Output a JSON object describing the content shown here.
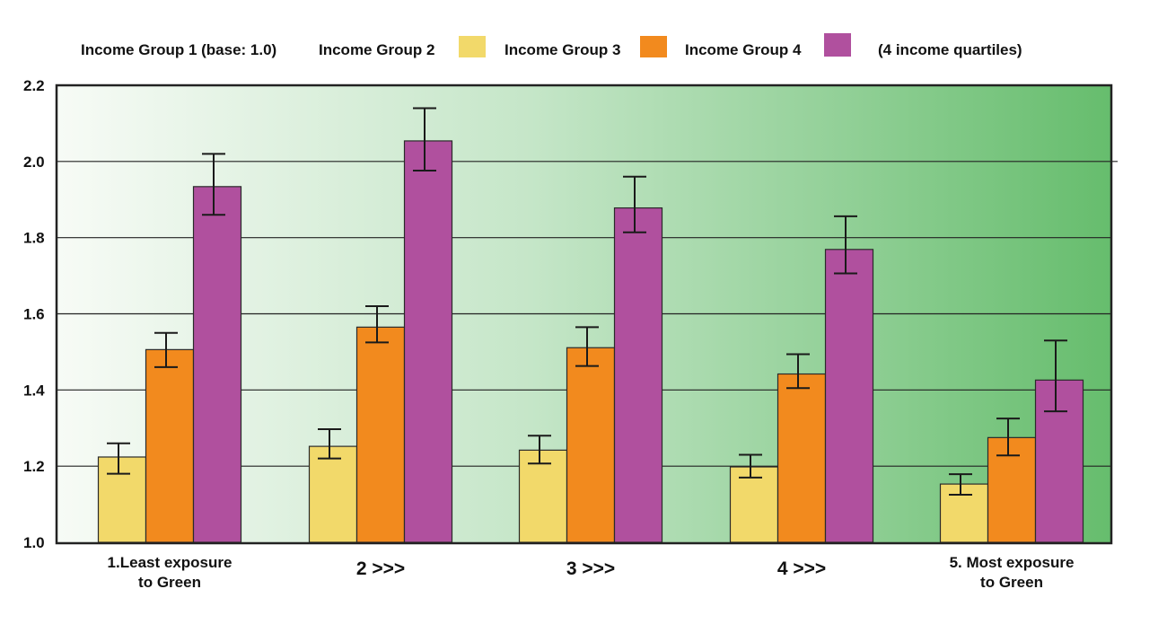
{
  "chart_data": {
    "type": "bar",
    "title": "",
    "xlabel": "",
    "ylabel": "",
    "ylim": [
      1.0,
      2.2
    ],
    "yticks": [
      "1.0",
      "1.2",
      "1.4",
      "1.6",
      "1.8",
      "2.0",
      "2.2"
    ],
    "grid": true,
    "legend_placement": "top",
    "legend": {
      "base_label": "Income Group 1 (base: 1.0)",
      "note": "(4 income quartiles)"
    },
    "categories": [
      [
        "1.Least exposure",
        "to Green"
      ],
      [
        "2 >>>"
      ],
      [
        "3 >>>"
      ],
      [
        "4 >>>"
      ],
      [
        "5. Most exposure",
        "to Green"
      ]
    ],
    "series": [
      {
        "name": "Income Group 2",
        "color": "#f2d96a",
        "values": [
          1.224,
          1.252,
          1.242,
          1.198,
          1.153
        ],
        "err_high": [
          1.26,
          1.297,
          1.28,
          1.23,
          1.179
        ],
        "err_low": [
          1.18,
          1.22,
          1.207,
          1.17,
          1.125
        ]
      },
      {
        "name": "Income Group 3",
        "color": "#f28a1e",
        "values": [
          1.506,
          1.565,
          1.511,
          1.442,
          1.275
        ],
        "err_high": [
          1.55,
          1.62,
          1.565,
          1.494,
          1.325
        ],
        "err_low": [
          1.46,
          1.525,
          1.463,
          1.405,
          1.228
        ]
      },
      {
        "name": "Income Group 4",
        "color": "#b0509e",
        "values": [
          1.934,
          2.054,
          1.878,
          1.769,
          1.426
        ],
        "err_high": [
          2.02,
          2.14,
          1.96,
          1.856,
          1.53
        ],
        "err_low": [
          1.86,
          1.976,
          1.814,
          1.706,
          1.344
        ]
      }
    ],
    "background_gradient": [
      "#f7fbf6",
      "#c5e6c8",
      "#66bd6d"
    ]
  }
}
